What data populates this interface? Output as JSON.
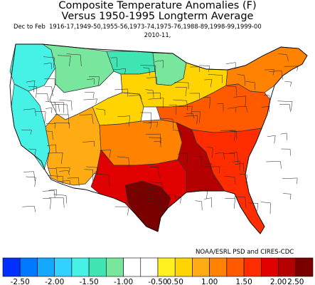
{
  "title_line1": "Composite Temperature Anomalies (F)",
  "title_line2": "Versus 1950-1995 Longterm Average",
  "period_label": "Dec to Feb",
  "years_line1": "1916-17,1949-50,1955-56,1973-74,1975-76,1988-89,1998-99,1999-00",
  "years_line2": "2010-11,",
  "credit": "NOAA/ESRL PSD and CIRES-CDC",
  "legend": {
    "tick_labels": [
      "-2.50",
      "-2.00",
      "-1.50",
      "-1.00",
      "-0.50",
      "0.50",
      "1.00",
      "1.50",
      "2.00",
      "2.50"
    ],
    "bins": [
      {
        "color": "#0030ff"
      },
      {
        "color": "#0078ff"
      },
      {
        "color": "#14a9ff"
      },
      {
        "color": "#32d2ff"
      },
      {
        "color": "#46f2e6"
      },
      {
        "color": "#3fe6b4"
      },
      {
        "color": "#78e69c"
      },
      {
        "color": "#ffffff"
      },
      {
        "color": "#ffffff"
      },
      {
        "color": "#fff01e"
      },
      {
        "color": "#ffd400"
      },
      {
        "color": "#ffac14"
      },
      {
        "color": "#ff8200"
      },
      {
        "color": "#ff5a00"
      },
      {
        "color": "#ff2d00"
      },
      {
        "color": "#e10000"
      },
      {
        "color": "#b40000"
      },
      {
        "color": "#7a0000"
      }
    ]
  },
  "map_regions": [
    {
      "name": "pacific-northwest",
      "color": "#46f2e6"
    },
    {
      "name": "california",
      "color": "#46f2e6"
    },
    {
      "name": "northern-rockies",
      "color": "#78e69c"
    },
    {
      "name": "north-dakota",
      "color": "#3fe6b4"
    },
    {
      "name": "minnesota",
      "color": "#78e69c"
    },
    {
      "name": "great-basin",
      "color": "#ffffff"
    },
    {
      "name": "colorado-wyoming",
      "color": "#ffd400"
    },
    {
      "name": "southwest",
      "color": "#ffac14"
    },
    {
      "name": "central-plains",
      "color": "#ff8200"
    },
    {
      "name": "great-lakes",
      "color": "#ffd400"
    },
    {
      "name": "northeast",
      "color": "#ff8200"
    },
    {
      "name": "ohio-valley",
      "color": "#ff5a00"
    },
    {
      "name": "southeast",
      "color": "#ff2d00"
    },
    {
      "name": "texas-gulf",
      "color": "#e10000"
    },
    {
      "name": "deep-south",
      "color": "#b40000"
    },
    {
      "name": "south-texas",
      "color": "#7a0000"
    }
  ]
}
